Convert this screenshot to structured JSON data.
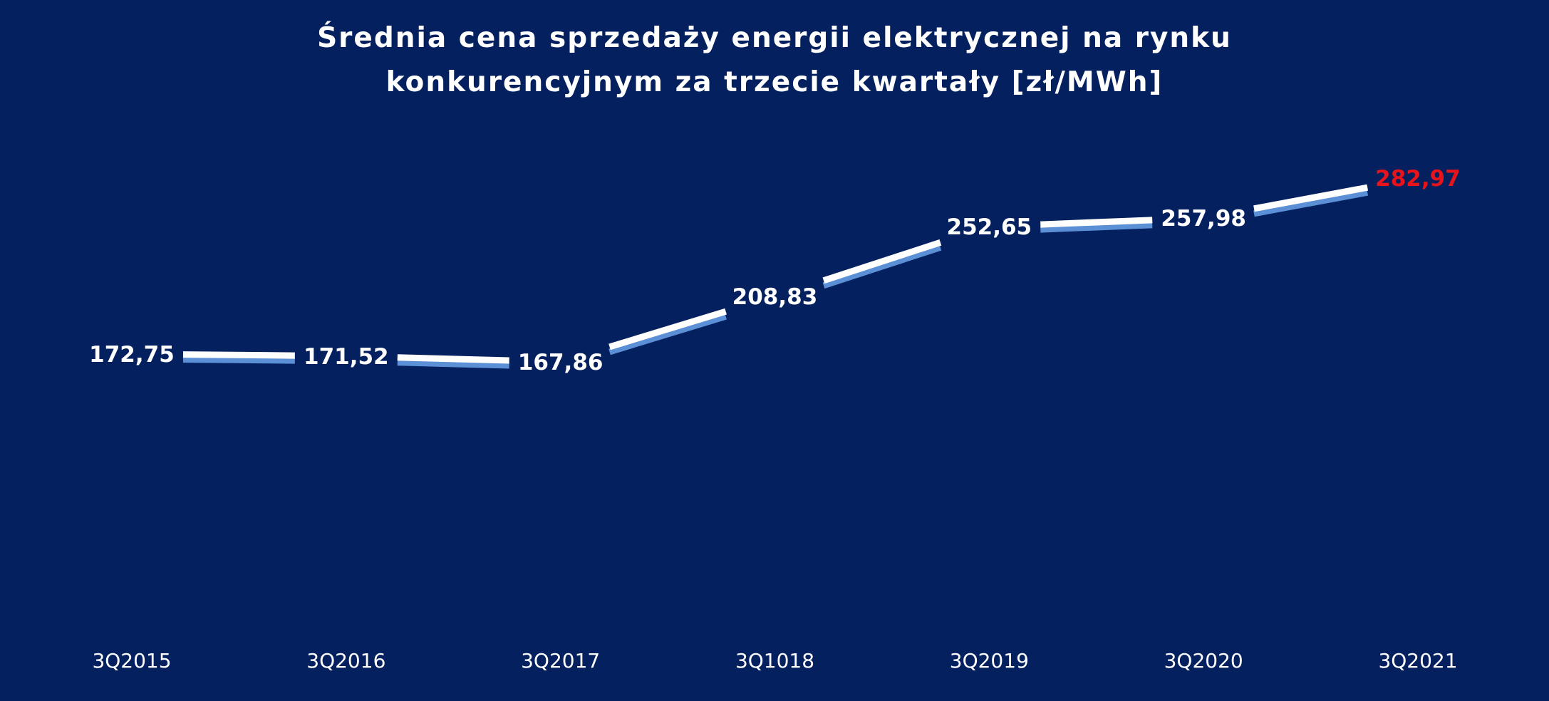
{
  "chart_data": {
    "type": "line",
    "title": "Średnia cena sprzedaży energii elektrycznej  na rynku konkurencyjnym  za trzecie kwartały  [zł/MWh]",
    "title_lines": [
      "Średnia cena sprzedaży energii elektrycznej  na rynku",
      "konkurencyjnym  za trzecie kwartały  [zł/MWh]"
    ],
    "categories": [
      "3Q2015",
      "3Q2016",
      "3Q2017",
      "3Q1018",
      "3Q2019",
      "3Q2020",
      "3Q2021"
    ],
    "values": [
      172.75,
      171.52,
      167.86,
      208.83,
      252.65,
      257.98,
      282.97
    ],
    "value_labels": [
      "172,75",
      "171,52",
      "167,86",
      "208,83",
      "252,65",
      "257,98",
      "282,97"
    ],
    "highlight_index": 6,
    "xlabel": "",
    "ylabel": "",
    "ylim": [
      0,
      300
    ],
    "grid": false,
    "legend": "none",
    "drop_lines": true
  },
  "colors": {
    "background": "#04205e",
    "line": "#ffffff",
    "line_shadow": "#5b8fd6",
    "label": "#ffffff",
    "highlight": "#e8141b"
  }
}
